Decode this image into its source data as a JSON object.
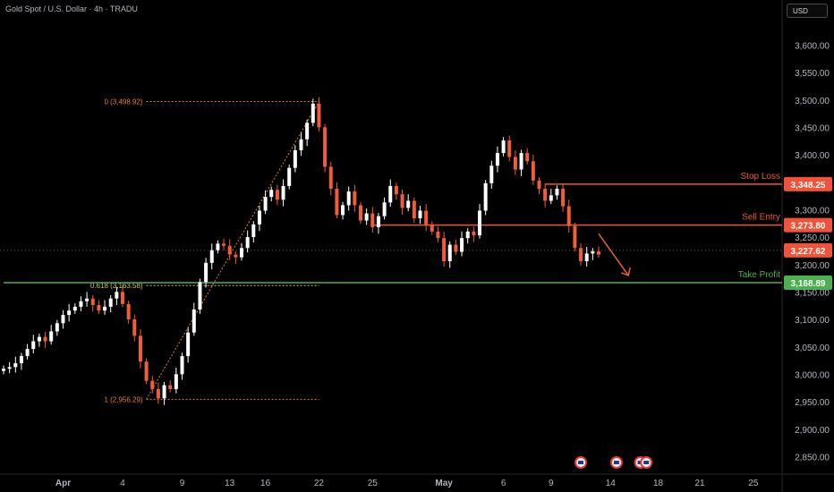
{
  "header": {
    "title": "Gold Spot / U.S. Dollar · 4h · TRADU",
    "currency_button": "USD"
  },
  "colors": {
    "up": "#ffffff",
    "down": "#ef5d3a",
    "stop": "#f0533a",
    "entry": "#f0533a",
    "price": "#f0533a",
    "tp": "#4caf50",
    "fib": "#e0802f",
    "fib618": "#d8c83a"
  },
  "chart_data": {
    "type": "candlestick",
    "ylim": [
      2820,
      3630
    ],
    "y_ticks": [
      2850,
      2900,
      2950,
      3000,
      3050,
      3100,
      3150,
      3200,
      3250,
      3300,
      3350,
      3400,
      3450,
      3500,
      3550,
      3600
    ],
    "y_tick_labels": [
      "2,850.00",
      "2,900.00",
      "2,950.00",
      "3,000.00",
      "3,050.00",
      "3,100.00",
      "3,150.00",
      "3,200.00",
      "3,250.00",
      "3,300.00",
      "3,350.00",
      "3,400.00",
      "3,450.00",
      "3,500.00",
      "3,550.00",
      "3,600.00"
    ],
    "x_labels": [
      {
        "label": "Apr",
        "bar": 10,
        "bold": true
      },
      {
        "label": "4",
        "bar": 20
      },
      {
        "label": "9",
        "bar": 30
      },
      {
        "label": "13",
        "bar": 38
      },
      {
        "label": "16",
        "bar": 44
      },
      {
        "label": "22",
        "bar": 53
      },
      {
        "label": "25",
        "bar": 62
      },
      {
        "label": "May",
        "bar": 74,
        "bold": true
      },
      {
        "label": "6",
        "bar": 84
      },
      {
        "label": "9",
        "bar": 92
      },
      {
        "label": "14",
        "bar": 102
      },
      {
        "label": "18",
        "bar": 110
      },
      {
        "label": "21",
        "bar": 117
      },
      {
        "label": "25",
        "bar": 126
      }
    ],
    "closes": [
      3012,
      3015,
      3022,
      3035,
      3048,
      3062,
      3070,
      3062,
      3080,
      3095,
      3110,
      3118,
      3125,
      3135,
      3140,
      3128,
      3118,
      3125,
      3140,
      3152,
      3130,
      3102,
      3072,
      3025,
      2990,
      2975,
      2958,
      2982,
      2975,
      3002,
      3035,
      3078,
      3120,
      3170,
      3205,
      3228,
      3240,
      3236,
      3220,
      3215,
      3232,
      3252,
      3275,
      3300,
      3325,
      3338,
      3320,
      3345,
      3378,
      3410,
      3430,
      3460,
      3495,
      3452,
      3380,
      3340,
      3292,
      3310,
      3335,
      3310,
      3282,
      3295,
      3270,
      3290,
      3315,
      3345,
      3330,
      3305,
      3318,
      3286,
      3300,
      3275,
      3262,
      3250,
      3208,
      3238,
      3225,
      3250,
      3262,
      3255,
      3300,
      3350,
      3382,
      3405,
      3428,
      3398,
      3375,
      3405,
      3390,
      3355,
      3340,
      3318,
      3328,
      3340,
      3308,
      3272,
      3232,
      3208,
      3222,
      3226,
      3220
    ],
    "stop_loss": {
      "value": 3348.25,
      "label": "Stop Loss",
      "tag": "3,348.25",
      "start_bar": 91
    },
    "sell_entry": {
      "value": 3273.8,
      "label": "Sell Entry",
      "tag": "3,273.80",
      "start_bar": 62
    },
    "take_profit": {
      "value": 3168.89,
      "label": "Take Profit",
      "tag": "3,168.89",
      "start_bar": 0
    },
    "last_price": {
      "value": 3227.62,
      "tag": "3,227.62"
    },
    "fib": {
      "zero": {
        "value": 3498.92,
        "label": "0 (3,498.92)"
      },
      "p618": {
        "value": 3163.58,
        "label": "0.618 (3,163.58)"
      },
      "one": {
        "value": 2956.29,
        "label": "1 (2,956.29)"
      },
      "start_bar": 24,
      "end_bar": 53
    },
    "arrow": {
      "from_bar": 100,
      "from_value": 3258,
      "to_bar": 105,
      "to_value": 3182
    },
    "event_icons": [
      {
        "bar": 97
      },
      {
        "bar": 103
      },
      {
        "bar": 107
      },
      {
        "bar": 108
      }
    ]
  }
}
